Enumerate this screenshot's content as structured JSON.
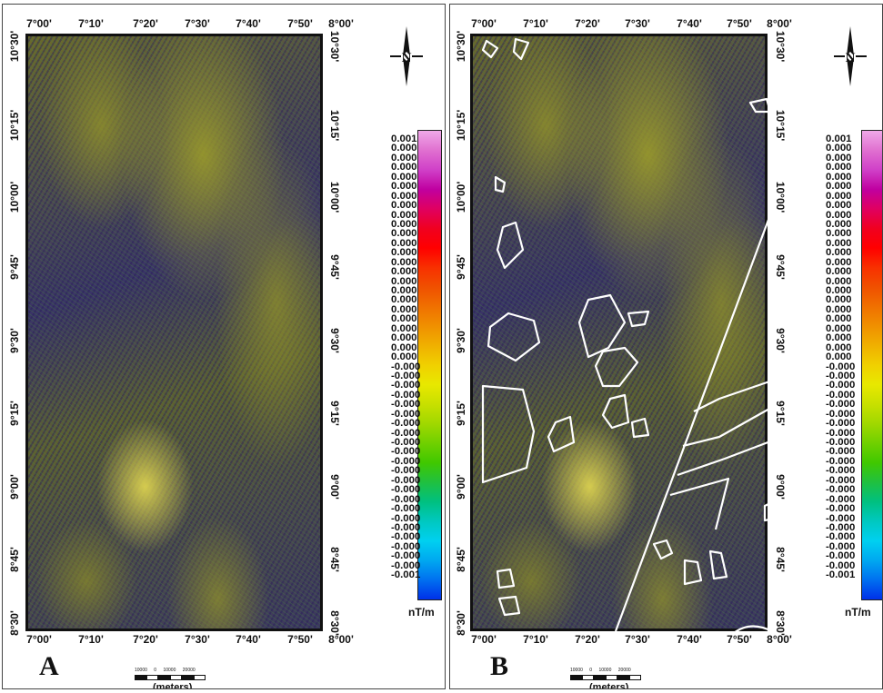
{
  "lon_labels": [
    "7°00'",
    "7°10'",
    "7°20'",
    "7°30'",
    "7°40'",
    "7°50'",
    "8°00'"
  ],
  "lat_labels": [
    "10°30'",
    "10°15'",
    "10°00'",
    "9°45'",
    "9°30'",
    "9°15'",
    "9°00'",
    "8°45'",
    "8°30'"
  ],
  "legend": {
    "values": [
      "0.001",
      "0.000",
      "0.000",
      "0.000",
      "0.000",
      "0.000",
      "0.000",
      "0.000",
      "0.000",
      "0.000",
      "0.000",
      "0.000",
      "0.000",
      "0.000",
      "0.000",
      "0.000",
      "0.000",
      "0.000",
      "0.000",
      "0.000",
      "0.000",
      "0.000",
      "0.000",
      "0.000",
      "-0.000",
      "-0.000",
      "-0.000",
      "-0.000",
      "-0.000",
      "-0.000",
      "-0.000",
      "-0.000",
      "-0.000",
      "-0.000",
      "-0.000",
      "-0.000",
      "-0.000",
      "-0.000",
      "-0.000",
      "-0.000",
      "-0.000",
      "-0.000",
      "-0.000",
      "-0.000",
      "-0.000",
      "-0.000",
      "-0.001"
    ],
    "unit": "nT/m",
    "colors": [
      "#f0a8e8",
      "#e070d0",
      "#d040c8",
      "#c000a0",
      "#e00060",
      "#f00020",
      "#ff0000",
      "#f83000",
      "#f05000",
      "#f07000",
      "#f09000",
      "#f0b000",
      "#f0d000",
      "#e8e800",
      "#c8e000",
      "#a0d800",
      "#70d000",
      "#40c800",
      "#20c040",
      "#00c080",
      "#00c8c0",
      "#00d0f0",
      "#00a8f0",
      "#0070f0",
      "#0030e8"
    ]
  },
  "north_label": "N",
  "scalebar": {
    "ticks": [
      "10000",
      "0",
      "10000",
      "20000"
    ],
    "unit": "(meters)"
  },
  "panels": [
    {
      "letter": "A"
    },
    {
      "letter": "B"
    }
  ]
}
